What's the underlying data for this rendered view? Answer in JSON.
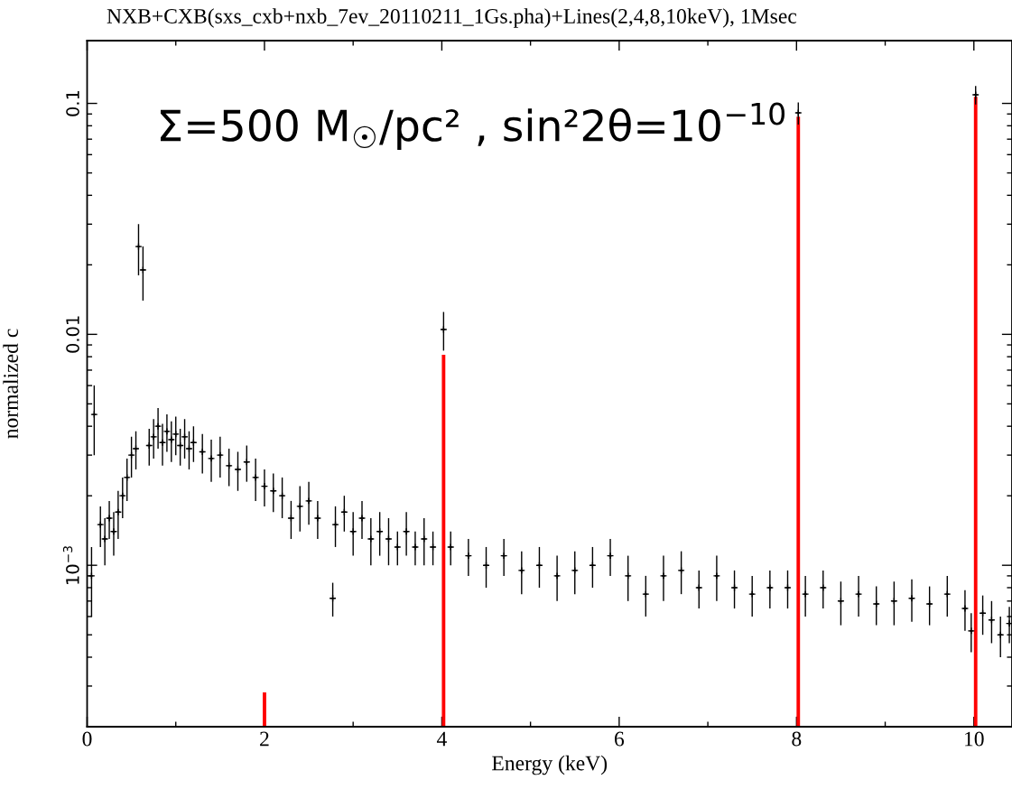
{
  "chart_data": {
    "type": "scatter",
    "title": "NXB+CXB(sxs_cxb+nxb_7ev_20110211_1Gs.pha)+Lines(2,4,8,10keV), 1Msec",
    "xlabel": "Energy (keV)",
    "ylabel": "normalized c",
    "annotations": [
      "Σ=500 M$_{☉}$/pc² , sin²2θ=10$^{−10}$"
    ],
    "log": "y",
    "xlim": [
      0,
      10.43
    ],
    "xticks": [
      0,
      2,
      4,
      6,
      8,
      10
    ],
    "ylim": [
      0.0002,
      0.187
    ],
    "yticks": [
      {
        "value": 0.001,
        "label": "10$^{−3}$"
      },
      0.01,
      0.1
    ],
    "grid": false,
    "marker": "cross",
    "series": [
      {
        "color": "#000000",
        "x": [
          0.05,
          0.08,
          0.15,
          0.2,
          0.25,
          0.3,
          0.35,
          0.4,
          0.45,
          0.5,
          0.55,
          0.58,
          0.63,
          0.7,
          0.75,
          0.8,
          0.85,
          0.9,
          0.95,
          1.0,
          1.05,
          1.1,
          1.15,
          1.2,
          1.3,
          1.4,
          1.5,
          1.6,
          1.7,
          1.8,
          1.9,
          2.0,
          2.1,
          2.2,
          2.3,
          2.4,
          2.5,
          2.6,
          2.77,
          2.8,
          2.9,
          3.0,
          3.1,
          3.2,
          3.3,
          3.4,
          3.5,
          3.6,
          3.7,
          3.8,
          3.9,
          4.02,
          4.1,
          4.3,
          4.5,
          4.7,
          4.9,
          5.1,
          5.3,
          5.5,
          5.7,
          5.9,
          6.1,
          6.3,
          6.5,
          6.7,
          6.9,
          7.1,
          7.3,
          7.5,
          7.7,
          7.9,
          8.02,
          8.1,
          8.3,
          8.5,
          8.7,
          8.9,
          9.1,
          9.3,
          9.5,
          9.7,
          9.9,
          9.97,
          10.02,
          10.1,
          10.2,
          10.3,
          10.4
        ],
        "values": [
          0.0009,
          0.0045,
          0.0015,
          0.0013,
          0.0016,
          0.0014,
          0.0017,
          0.002,
          0.0024,
          0.003,
          0.0032,
          0.024,
          0.019,
          0.0033,
          0.0036,
          0.004,
          0.0034,
          0.0038,
          0.0035,
          0.0037,
          0.0033,
          0.0036,
          0.0032,
          0.0034,
          0.0031,
          0.0029,
          0.003,
          0.0027,
          0.0026,
          0.0028,
          0.0024,
          0.0022,
          0.0021,
          0.002,
          0.0016,
          0.0018,
          0.0019,
          0.0016,
          0.00072,
          0.0015,
          0.0017,
          0.0014,
          0.0016,
          0.0013,
          0.0014,
          0.0013,
          0.0012,
          0.0014,
          0.0012,
          0.0013,
          0.0012,
          0.0105,
          0.0012,
          0.0011,
          0.001,
          0.0011,
          0.00095,
          0.001,
          0.0009,
          0.00095,
          0.001,
          0.0011,
          0.0009,
          0.00075,
          0.0009,
          0.00095,
          0.0008,
          0.0009,
          0.0008,
          0.00075,
          0.0008,
          0.0008,
          0.091,
          0.00075,
          0.0008,
          0.0007,
          0.00075,
          0.00068,
          0.0007,
          0.00072,
          0.00068,
          0.00075,
          0.00065,
          0.00052,
          0.109,
          0.00062,
          0.00058,
          0.0005,
          0.00056
        ],
        "errors": [
          0.0003,
          0.0015,
          0.0003,
          0.0003,
          0.0003,
          0.0003,
          0.0004,
          0.0004,
          0.0005,
          0.0006,
          0.0006,
          0.006,
          0.005,
          0.0006,
          0.0007,
          0.0008,
          0.0007,
          0.0007,
          0.0007,
          0.0007,
          0.0006,
          0.0007,
          0.0006,
          0.0006,
          0.0006,
          0.0006,
          0.0006,
          0.0005,
          0.0005,
          0.0005,
          0.0005,
          0.0004,
          0.0004,
          0.0004,
          0.0003,
          0.0004,
          0.0004,
          0.0003,
          0.00012,
          0.0003,
          0.0003,
          0.0003,
          0.0003,
          0.0003,
          0.0003,
          0.0003,
          0.0002,
          0.0003,
          0.0002,
          0.0003,
          0.0002,
          0.002,
          0.0002,
          0.0002,
          0.0002,
          0.0002,
          0.0002,
          0.0002,
          0.0002,
          0.0002,
          0.0002,
          0.0002,
          0.0002,
          0.00015,
          0.0002,
          0.0002,
          0.00015,
          0.0002,
          0.00015,
          0.00015,
          0.00015,
          0.00015,
          0.01,
          0.00015,
          0.00015,
          0.00015,
          0.00015,
          0.00013,
          0.00015,
          0.00015,
          0.00013,
          0.00015,
          0.00013,
          0.0001,
          0.01,
          0.00012,
          0.00012,
          0.0001,
          0.0001
        ],
        "xerrors": [
          0.02,
          0.02,
          0.02,
          0.02,
          0.02,
          0.02,
          0.02,
          0.02,
          0.02,
          0.02,
          0.02,
          0.02,
          0.02,
          0.02,
          0.02,
          0.02,
          0.02,
          0.02,
          0.02,
          0.02,
          0.02,
          0.02,
          0.02,
          0.02,
          0.02,
          0.02,
          0.02,
          0.02,
          0.02,
          0.02,
          0.02,
          0.02,
          0.02,
          0.02,
          0.02,
          0.02,
          0.02,
          0.02,
          0.02,
          0.02,
          0.02,
          0.02,
          0.02,
          0.02,
          0.02,
          0.02,
          0.02,
          0.02,
          0.02,
          0.02,
          0.02,
          0.02,
          0.02,
          0.02,
          0.02,
          0.02,
          0.02,
          0.02,
          0.02,
          0.02,
          0.02,
          0.02,
          0.02,
          0.02,
          0.02,
          0.02,
          0.02,
          0.02,
          0.02,
          0.02,
          0.02,
          0.02,
          0.02,
          0.02,
          0.02,
          0.02,
          0.02,
          0.02,
          0.02,
          0.02,
          0.02,
          0.02,
          0.02,
          0.02,
          0.02,
          0.02,
          0.02,
          0.02,
          0.02
        ]
      },
      {
        "type": "bar",
        "color": "#ff0000",
        "x": [
          2.0,
          4.02,
          8.02,
          10.02
        ],
        "values": [
          0.00028,
          0.0081,
          0.087,
          0.106
        ]
      }
    ]
  }
}
